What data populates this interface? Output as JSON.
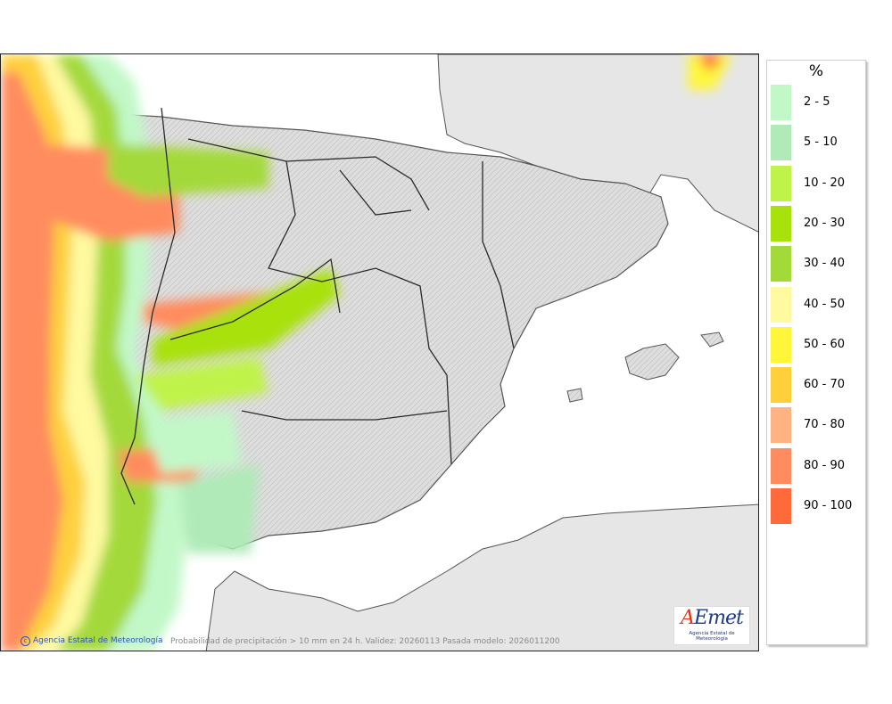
{
  "map": {
    "credit": "Agencia Estatal de Meteorología",
    "caption": "Probabilidad de precipitación > 10 mm en 24 h. Validez: 20260113 Pasada modelo: 2026011200",
    "logo": {
      "text": "AEmet",
      "subtitle": "Agencia Estatal de Meteorología"
    },
    "colors": {
      "sea": "#ffffff",
      "land": "#e6e6e6",
      "terrain": "#d6d6d6",
      "border": "#333333"
    }
  },
  "legend": {
    "unit": "%",
    "items": [
      {
        "label": "2 - 5",
        "color": "#c2f8c8"
      },
      {
        "label": "5 - 10",
        "color": "#b0eab8"
      },
      {
        "label": "10 - 20",
        "color": "#c0f34a"
      },
      {
        "label": "20 - 30",
        "color": "#a9e10c"
      },
      {
        "label": "30 - 40",
        "color": "#a4d93a"
      },
      {
        "label": "40 - 50",
        "color": "#fff9a0"
      },
      {
        "label": "50 - 60",
        "color": "#fff63c"
      },
      {
        "label": "60 - 70",
        "color": "#ffd03c"
      },
      {
        "label": "70 - 80",
        "color": "#ffb282"
      },
      {
        "label": "80 - 90",
        "color": "#ff8c5e"
      },
      {
        "label": "90 - 100",
        "color": "#ff6a3a"
      }
    ]
  }
}
